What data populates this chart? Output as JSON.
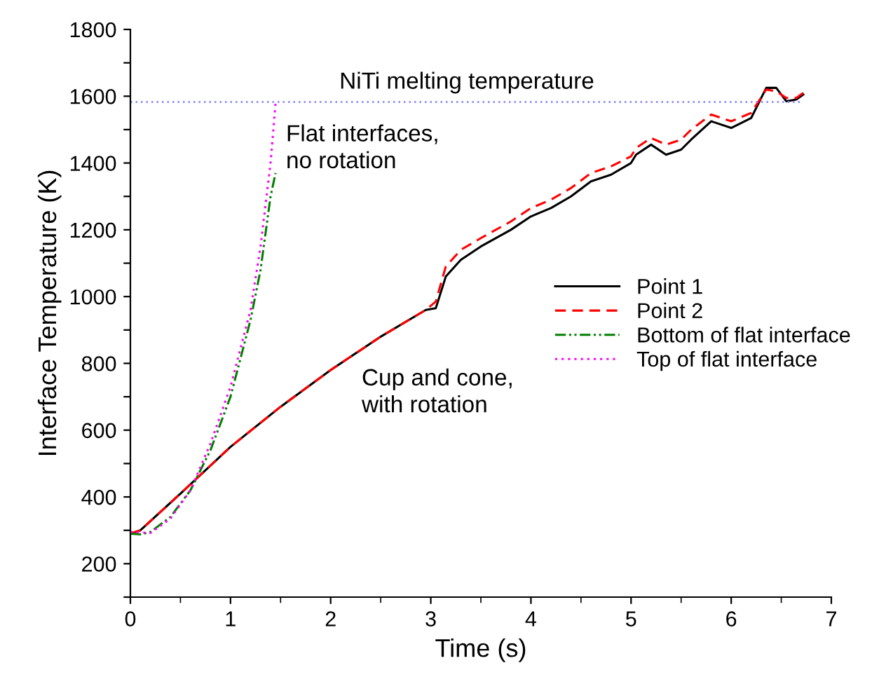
{
  "chart_data": {
    "type": "line",
    "xlabel": "Time (s)",
    "ylabel": "Interface Temperature (K)",
    "xlim": [
      0,
      7
    ],
    "ylim": [
      100,
      1800
    ],
    "xticks": [
      0,
      1,
      2,
      3,
      4,
      5,
      6,
      7
    ],
    "yticks": [
      {
        "value": 100,
        "label": null
      },
      200,
      {
        "value": 300,
        "label": null
      },
      400,
      {
        "value": 500,
        "label": null
      },
      600,
      {
        "value": 700,
        "label": null
      },
      800,
      {
        "value": 900,
        "label": null
      },
      1000,
      {
        "value": 1100,
        "label": null
      },
      1200,
      {
        "value": 1300,
        "label": null
      },
      1400,
      {
        "value": 1500,
        "label": null
      },
      1600,
      {
        "value": 1700,
        "label": null
      },
      1800
    ],
    "grid": false,
    "legend": "right",
    "ref_lines": [
      {
        "axis": "y",
        "value": 1583,
        "label": "NiTi melting temperature",
        "color": "#8080ff",
        "line_style": "dotted"
      }
    ],
    "annotations": [
      "Flat interfaces,\nno rotation",
      "Cup and cone,\nwith rotation"
    ],
    "series": [
      {
        "name": "Point 1",
        "color": "#000000",
        "line_style": "solid",
        "x": [
          0,
          0.1,
          0.5,
          1,
          1.5,
          2,
          2.5,
          2.95,
          3.05,
          3.15,
          3.3,
          3.5,
          3.8,
          4,
          4.2,
          4.4,
          4.6,
          4.8,
          5,
          5.05,
          5.2,
          5.35,
          5.5,
          5.6,
          5.8,
          6,
          6.2,
          6.35,
          6.45,
          6.55,
          6.65,
          6.72
        ],
        "values": [
          290,
          300,
          410,
          550,
          670,
          780,
          880,
          960,
          965,
          1060,
          1110,
          1150,
          1200,
          1240,
          1265,
          1300,
          1345,
          1365,
          1400,
          1425,
          1455,
          1425,
          1440,
          1470,
          1525,
          1505,
          1535,
          1625,
          1625,
          1585,
          1590,
          1605
        ]
      },
      {
        "name": "Point 2",
        "color": "#ff0000",
        "line_style": "dashed",
        "x": [
          0,
          0.1,
          0.5,
          1,
          1.5,
          2,
          2.5,
          2.95,
          3.05,
          3.15,
          3.3,
          3.5,
          3.8,
          4,
          4.2,
          4.4,
          4.6,
          4.8,
          5,
          5.05,
          5.2,
          5.35,
          5.5,
          5.6,
          5.8,
          6,
          6.2,
          6.35,
          6.45,
          6.55,
          6.65,
          6.72
        ],
        "values": [
          290,
          300,
          410,
          550,
          670,
          780,
          880,
          960,
          985,
          1090,
          1140,
          1175,
          1225,
          1265,
          1290,
          1325,
          1370,
          1390,
          1420,
          1445,
          1475,
          1455,
          1470,
          1500,
          1545,
          1525,
          1550,
          1620,
          1615,
          1595,
          1595,
          1610
        ]
      },
      {
        "name": "Bottom of flat interface",
        "color": "#008000",
        "line_style": "dashdot",
        "x": [
          0,
          0.1,
          0.2,
          0.4,
          0.6,
          0.8,
          1.0,
          1.2,
          1.3,
          1.4,
          1.45
        ],
        "values": [
          290,
          288,
          295,
          340,
          420,
          540,
          700,
          930,
          1080,
          1300,
          1370
        ]
      },
      {
        "name": "Top of flat interface",
        "color": "#ff00ff",
        "line_style": "dotted",
        "x": [
          0,
          0.2,
          0.4,
          0.6,
          0.8,
          1.0,
          1.2,
          1.3,
          1.4,
          1.45
        ],
        "values": [
          295,
          292,
          335,
          420,
          560,
          730,
          960,
          1150,
          1400,
          1580
        ]
      }
    ]
  }
}
